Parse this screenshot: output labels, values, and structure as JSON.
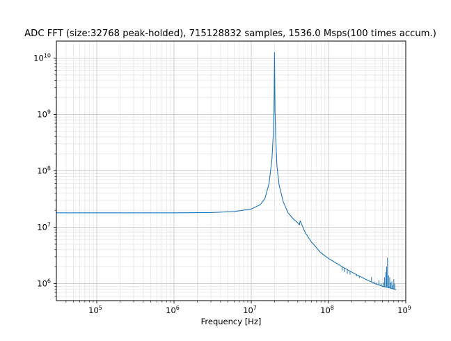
{
  "chart_data": {
    "type": "line",
    "title": "ADC FFT (size:32768 peak-holded), 715128832 samples, 1536.0 Msps(100 times accum.)",
    "xlabel": "Frequency [Hz]",
    "ylabel": "",
    "xscale": "log",
    "yscale": "log",
    "xlim": [
      30000,
      1000000000
    ],
    "ylim": [
      500000,
      20000000000
    ],
    "grid": "major and minor",
    "legend": "none",
    "x_ticks": [
      {
        "value": 100000,
        "base": "10",
        "exp": "5"
      },
      {
        "value": 1000000,
        "base": "10",
        "exp": "6"
      },
      {
        "value": 10000000,
        "base": "10",
        "exp": "7"
      },
      {
        "value": 100000000,
        "base": "10",
        "exp": "8"
      },
      {
        "value": 1000000000,
        "base": "10",
        "exp": "9"
      }
    ],
    "y_ticks": [
      {
        "value": 1000000,
        "base": "10",
        "exp": "6"
      },
      {
        "value": 10000000,
        "base": "10",
        "exp": "7"
      },
      {
        "value": 100000000,
        "base": "10",
        "exp": "8"
      },
      {
        "value": 1000000000,
        "base": "10",
        "exp": "9"
      },
      {
        "value": 10000000000,
        "base": "10",
        "exp": "10"
      }
    ],
    "series": [
      {
        "color": "#1f77b4",
        "x": [
          30000,
          100000,
          1000000,
          3000000,
          6000000,
          10000000,
          13000000,
          15000000,
          17000000,
          18500000,
          19300000,
          19700000,
          20000000,
          20300000,
          20700000,
          21500000,
          23000000,
          26000000,
          30000000,
          35000000,
          40000000,
          42000000,
          43000000,
          50000000,
          60000000,
          80000000,
          100000000,
          150000000,
          200000000,
          300000000,
          400000000,
          500000000,
          600000000,
          750000000
        ],
        "y": [
          18000000,
          18000000,
          18000000,
          18200000,
          19000000,
          21000000,
          25000000,
          32000000,
          60000000,
          160000000,
          450000000,
          1200000000,
          12500000000,
          1200000000,
          400000000,
          120000000,
          55000000,
          28000000,
          18000000,
          14000000,
          12000000,
          11000000,
          13000000,
          8000000,
          5500000,
          3500000,
          2800000,
          2000000,
          1600000,
          1200000,
          1000000,
          900000,
          850000,
          780000
        ]
      }
    ],
    "spurs": {
      "x": [
        150000000,
        160000000,
        175000000,
        190000000,
        210000000,
        230000000,
        250000000,
        280000000,
        310000000,
        340000000,
        360000000,
        390000000,
        420000000,
        450000000,
        480000000,
        510000000,
        530000000,
        550000000,
        565000000,
        580000000,
        600000000,
        620000000,
        640000000,
        660000000,
        680000000,
        700000000,
        720000000
      ],
      "y": [
        1700000,
        1600000,
        1500000,
        1450000,
        1550000,
        1350000,
        1250000,
        1300000,
        1150000,
        1100000,
        1300000,
        1080000,
        1050000,
        1150000,
        1000000,
        1050000,
        1300000,
        1600000,
        2000000,
        2900000,
        1400000,
        1300000,
        1050000,
        1100000,
        950000,
        1200000,
        1000000
      ]
    }
  }
}
